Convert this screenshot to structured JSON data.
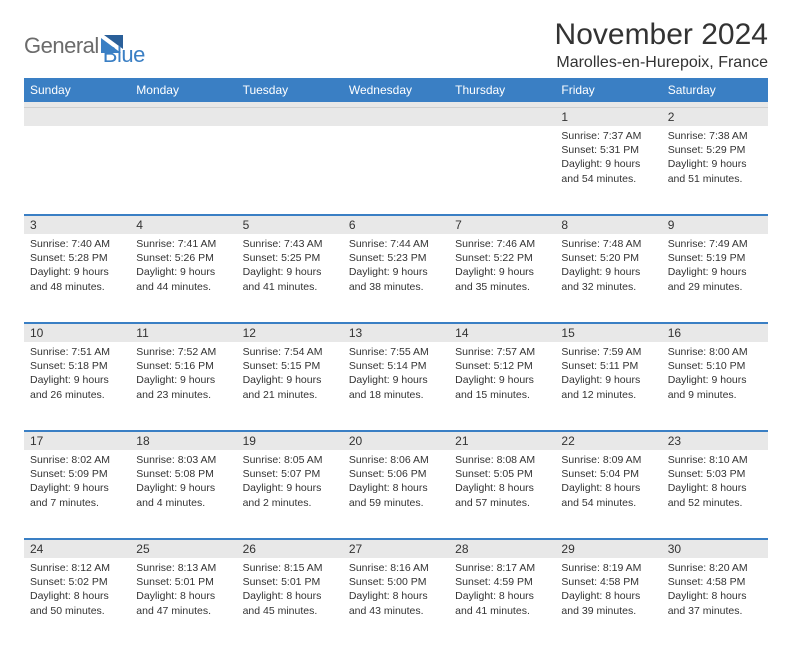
{
  "brand": {
    "text1": "General",
    "text2": "Blue"
  },
  "title": "November 2024",
  "location": "Marolles-en-Hurepoix, France",
  "header_bg": "#3a7fc4",
  "dayNames": [
    "Sunday",
    "Monday",
    "Tuesday",
    "Wednesday",
    "Thursday",
    "Friday",
    "Saturday"
  ],
  "weeks": [
    {
      "nums": [
        "",
        "",
        "",
        "",
        "",
        "1",
        "2"
      ],
      "cells": [
        null,
        null,
        null,
        null,
        null,
        {
          "sunrise": "7:37 AM",
          "sunset": "5:31 PM",
          "daylight": "9 hours and 54 minutes."
        },
        {
          "sunrise": "7:38 AM",
          "sunset": "5:29 PM",
          "daylight": "9 hours and 51 minutes."
        }
      ]
    },
    {
      "nums": [
        "3",
        "4",
        "5",
        "6",
        "7",
        "8",
        "9"
      ],
      "cells": [
        {
          "sunrise": "7:40 AM",
          "sunset": "5:28 PM",
          "daylight": "9 hours and 48 minutes."
        },
        {
          "sunrise": "7:41 AM",
          "sunset": "5:26 PM",
          "daylight": "9 hours and 44 minutes."
        },
        {
          "sunrise": "7:43 AM",
          "sunset": "5:25 PM",
          "daylight": "9 hours and 41 minutes."
        },
        {
          "sunrise": "7:44 AM",
          "sunset": "5:23 PM",
          "daylight": "9 hours and 38 minutes."
        },
        {
          "sunrise": "7:46 AM",
          "sunset": "5:22 PM",
          "daylight": "9 hours and 35 minutes."
        },
        {
          "sunrise": "7:48 AM",
          "sunset": "5:20 PM",
          "daylight": "9 hours and 32 minutes."
        },
        {
          "sunrise": "7:49 AM",
          "sunset": "5:19 PM",
          "daylight": "9 hours and 29 minutes."
        }
      ]
    },
    {
      "nums": [
        "10",
        "11",
        "12",
        "13",
        "14",
        "15",
        "16"
      ],
      "cells": [
        {
          "sunrise": "7:51 AM",
          "sunset": "5:18 PM",
          "daylight": "9 hours and 26 minutes."
        },
        {
          "sunrise": "7:52 AM",
          "sunset": "5:16 PM",
          "daylight": "9 hours and 23 minutes."
        },
        {
          "sunrise": "7:54 AM",
          "sunset": "5:15 PM",
          "daylight": "9 hours and 21 minutes."
        },
        {
          "sunrise": "7:55 AM",
          "sunset": "5:14 PM",
          "daylight": "9 hours and 18 minutes."
        },
        {
          "sunrise": "7:57 AM",
          "sunset": "5:12 PM",
          "daylight": "9 hours and 15 minutes."
        },
        {
          "sunrise": "7:59 AM",
          "sunset": "5:11 PM",
          "daylight": "9 hours and 12 minutes."
        },
        {
          "sunrise": "8:00 AM",
          "sunset": "5:10 PM",
          "daylight": "9 hours and 9 minutes."
        }
      ]
    },
    {
      "nums": [
        "17",
        "18",
        "19",
        "20",
        "21",
        "22",
        "23"
      ],
      "cells": [
        {
          "sunrise": "8:02 AM",
          "sunset": "5:09 PM",
          "daylight": "9 hours and 7 minutes."
        },
        {
          "sunrise": "8:03 AM",
          "sunset": "5:08 PM",
          "daylight": "9 hours and 4 minutes."
        },
        {
          "sunrise": "8:05 AM",
          "sunset": "5:07 PM",
          "daylight": "9 hours and 2 minutes."
        },
        {
          "sunrise": "8:06 AM",
          "sunset": "5:06 PM",
          "daylight": "8 hours and 59 minutes."
        },
        {
          "sunrise": "8:08 AM",
          "sunset": "5:05 PM",
          "daylight": "8 hours and 57 minutes."
        },
        {
          "sunrise": "8:09 AM",
          "sunset": "5:04 PM",
          "daylight": "8 hours and 54 minutes."
        },
        {
          "sunrise": "8:10 AM",
          "sunset": "5:03 PM",
          "daylight": "8 hours and 52 minutes."
        }
      ]
    },
    {
      "nums": [
        "24",
        "25",
        "26",
        "27",
        "28",
        "29",
        "30"
      ],
      "cells": [
        {
          "sunrise": "8:12 AM",
          "sunset": "5:02 PM",
          "daylight": "8 hours and 50 minutes."
        },
        {
          "sunrise": "8:13 AM",
          "sunset": "5:01 PM",
          "daylight": "8 hours and 47 minutes."
        },
        {
          "sunrise": "8:15 AM",
          "sunset": "5:01 PM",
          "daylight": "8 hours and 45 minutes."
        },
        {
          "sunrise": "8:16 AM",
          "sunset": "5:00 PM",
          "daylight": "8 hours and 43 minutes."
        },
        {
          "sunrise": "8:17 AM",
          "sunset": "4:59 PM",
          "daylight": "8 hours and 41 minutes."
        },
        {
          "sunrise": "8:19 AM",
          "sunset": "4:58 PM",
          "daylight": "8 hours and 39 minutes."
        },
        {
          "sunrise": "8:20 AM",
          "sunset": "4:58 PM",
          "daylight": "8 hours and 37 minutes."
        }
      ]
    }
  ],
  "labels": {
    "sunrise": "Sunrise:",
    "sunset": "Sunset:",
    "daylight": "Daylight:"
  }
}
